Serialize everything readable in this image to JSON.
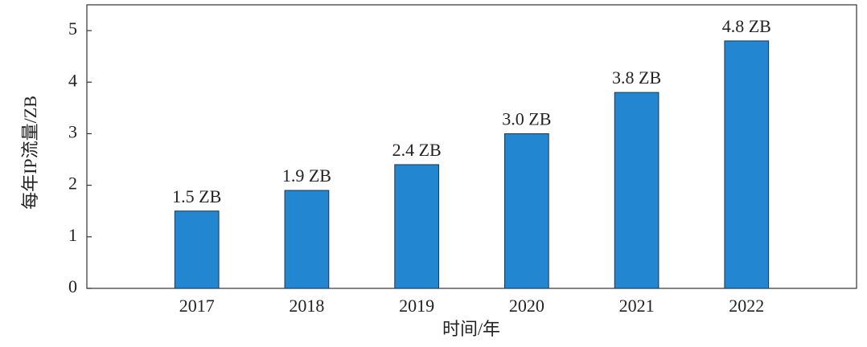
{
  "chart_data": {
    "type": "bar",
    "categories": [
      "2017",
      "2018",
      "2019",
      "2020",
      "2021",
      "2022"
    ],
    "values": [
      1.5,
      1.9,
      2.4,
      3.0,
      3.8,
      4.8
    ],
    "value_labels": [
      "1.5 ZB",
      "1.9 ZB",
      "2.4 ZB",
      "3.0 ZB",
      "3.8 ZB",
      "4.8 ZB"
    ],
    "color": "#2286d0",
    "ylim": [
      0,
      5.5
    ],
    "yticks": [
      0,
      1,
      2,
      3,
      4,
      5
    ],
    "xlabel": "时间/年",
    "ylabel": "每年IP流量/ZB",
    "grid": false
  }
}
